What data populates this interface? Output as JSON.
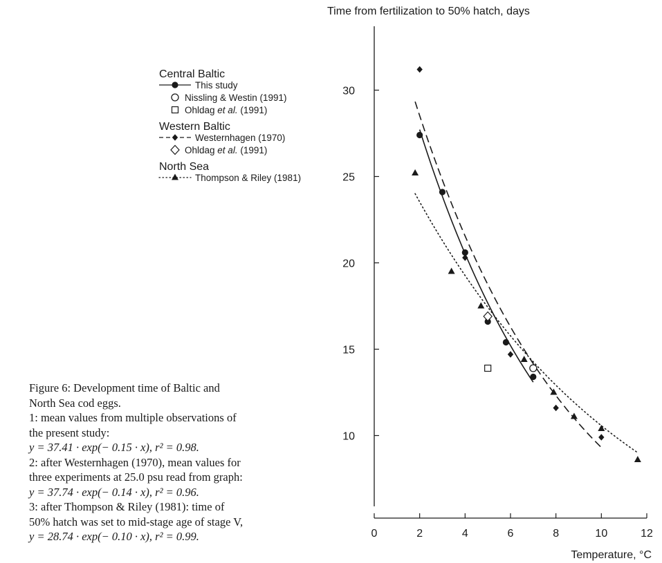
{
  "chart_data": {
    "type": "scatter",
    "title": "",
    "ylabel": "Time from fertilization to 50% hatch, days",
    "xlabel": "Temperature, °C",
    "xlim": [
      0,
      12
    ],
    "ylim": [
      6.7,
      33.7
    ],
    "xticks": [
      0,
      2,
      4,
      6,
      8,
      10,
      12
    ],
    "yticks": [
      10,
      15,
      20,
      25,
      30
    ],
    "xtick_labels": [
      "0",
      "2",
      "4",
      "6",
      "8",
      "10",
      "12"
    ],
    "ytick_labels": [
      "10",
      "15",
      "20",
      "25",
      "30"
    ],
    "grid": false,
    "legend_position": "upper-left",
    "legend_groups": [
      {
        "title": "Central Baltic",
        "entries": [
          {
            "label": "This study",
            "marker": "filled-circle",
            "line": "solid"
          },
          {
            "label": "Nissling & Westin (1991)",
            "marker": "open-circle",
            "line": "none"
          },
          {
            "label": "Ohldag et al. (1991)",
            "marker": "open-square",
            "line": "none"
          }
        ]
      },
      {
        "title": "Western Baltic",
        "entries": [
          {
            "label": "Westernhagen (1970)",
            "marker": "filled-diamond",
            "line": "dashed"
          },
          {
            "label": "Ohldag et al. (1991)",
            "marker": "open-diamond",
            "line": "none"
          }
        ]
      },
      {
        "title": "North Sea",
        "entries": [
          {
            "label": "Thompson & Riley (1981)",
            "marker": "filled-triangle",
            "line": "dotted"
          }
        ]
      }
    ],
    "series": [
      {
        "marker": "filled-circle",
        "x": [
          2.0,
          3.0,
          4.0,
          5.0,
          5.8,
          7.0
        ],
        "y": [
          27.4,
          24.1,
          20.6,
          16.6,
          15.4,
          13.4
        ]
      },
      {
        "marker": "open-circle",
        "x": [
          7.0
        ],
        "y": [
          13.9
        ]
      },
      {
        "marker": "open-square",
        "x": [
          5.0
        ],
        "y": [
          13.9
        ]
      },
      {
        "marker": "filled-diamond",
        "x": [
          2.0,
          4.0,
          6.0,
          8.0,
          10.0
        ],
        "y": [
          31.2,
          20.3,
          14.7,
          11.6,
          9.9
        ]
      },
      {
        "marker": "open-diamond",
        "x": [
          5.0
        ],
        "y": [
          16.9
        ]
      },
      {
        "marker": "filled-triangle",
        "x": [
          1.8,
          3.4,
          4.7,
          6.6,
          7.9,
          8.8,
          10.0,
          11.6
        ],
        "y": [
          25.2,
          19.5,
          17.5,
          14.4,
          12.5,
          11.1,
          10.4,
          8.6
        ]
      }
    ],
    "fits": [
      {
        "style": "solid",
        "a": 37.41,
        "b": 0.15,
        "x_range": [
          2.0,
          7.0
        ]
      },
      {
        "style": "dashed",
        "a": 37.74,
        "b": 0.14,
        "x_range": [
          1.8,
          10.0
        ]
      },
      {
        "style": "dotted",
        "a": 28.74,
        "b": 0.1,
        "x_range": [
          1.8,
          11.6
        ]
      }
    ]
  },
  "caption": {
    "lines": [
      "Figure 6: Development time of Baltic and",
      "North Sea cod eggs.",
      "1: mean values from multiple observations of",
      "the present study:",
      "y = 37.41 · exp(− 0.15 · x), r² = 0.98.",
      "2: after Westernhagen (1970), mean values for",
      "three experiments at 25.0 psu read from graph:",
      "y = 37.74 · exp(− 0.14 · x), r² = 0.96.",
      "3: after Thompson & Riley (1981): time of",
      "50% hatch was set to mid-stage age of stage V,",
      "y = 28.74 · exp(− 0.10 · x), r² = 0.99."
    ]
  }
}
